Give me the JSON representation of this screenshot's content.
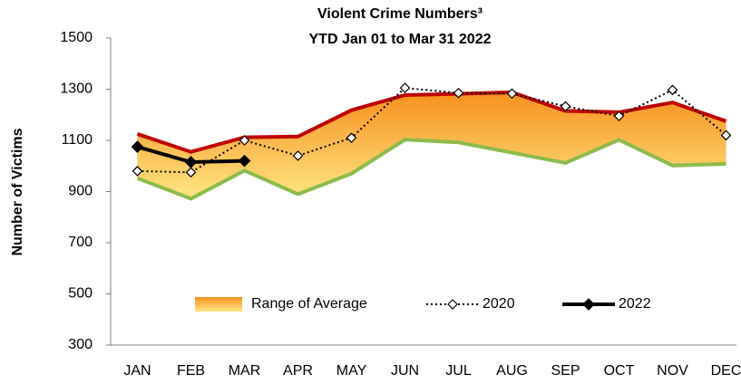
{
  "chart_data": {
    "type": "line",
    "title": "Violent Crime Numbers³",
    "subtitle": "YTD Jan 01 to Mar 31 2022",
    "y_label": "Number of Victims",
    "categories": [
      "JAN",
      "FEB",
      "MAR",
      "APR",
      "MAY",
      "JUN",
      "JUL",
      "AUG",
      "SEP",
      "OCT",
      "NOV",
      "DEC"
    ],
    "range": {
      "name": "Range of Average",
      "upper": [
        1125,
        1055,
        1112,
        1115,
        1218,
        1277,
        1282,
        1288,
        1215,
        1210,
        1248,
        1175
      ],
      "lower": [
        952,
        872,
        982,
        890,
        970,
        1103,
        1092,
        1052,
        1012,
        1102,
        1002,
        1008
      ],
      "upper_color": "#c00000",
      "lower_color": "#8dbb4b",
      "fill_top": "#f7901e",
      "fill_bottom": "#ffe784"
    },
    "series": [
      {
        "name": "2020",
        "color": "#000000",
        "dashed": true,
        "marker_fill": "#ffffff",
        "values": [
          980,
          975,
          1100,
          1040,
          1110,
          1305,
          1285,
          1283,
          1233,
          1195,
          1297,
          1120
        ]
      },
      {
        "name": "2022",
        "color": "#000000",
        "dashed": false,
        "marker_fill": "#000000",
        "values": [
          1075,
          1015,
          1020,
          null,
          null,
          null,
          null,
          null,
          null,
          null,
          null,
          null
        ]
      }
    ],
    "ylim": [
      300,
      1500
    ],
    "yticks": [
      300,
      500,
      700,
      900,
      1100,
      1300,
      1500
    ],
    "grid": false
  }
}
